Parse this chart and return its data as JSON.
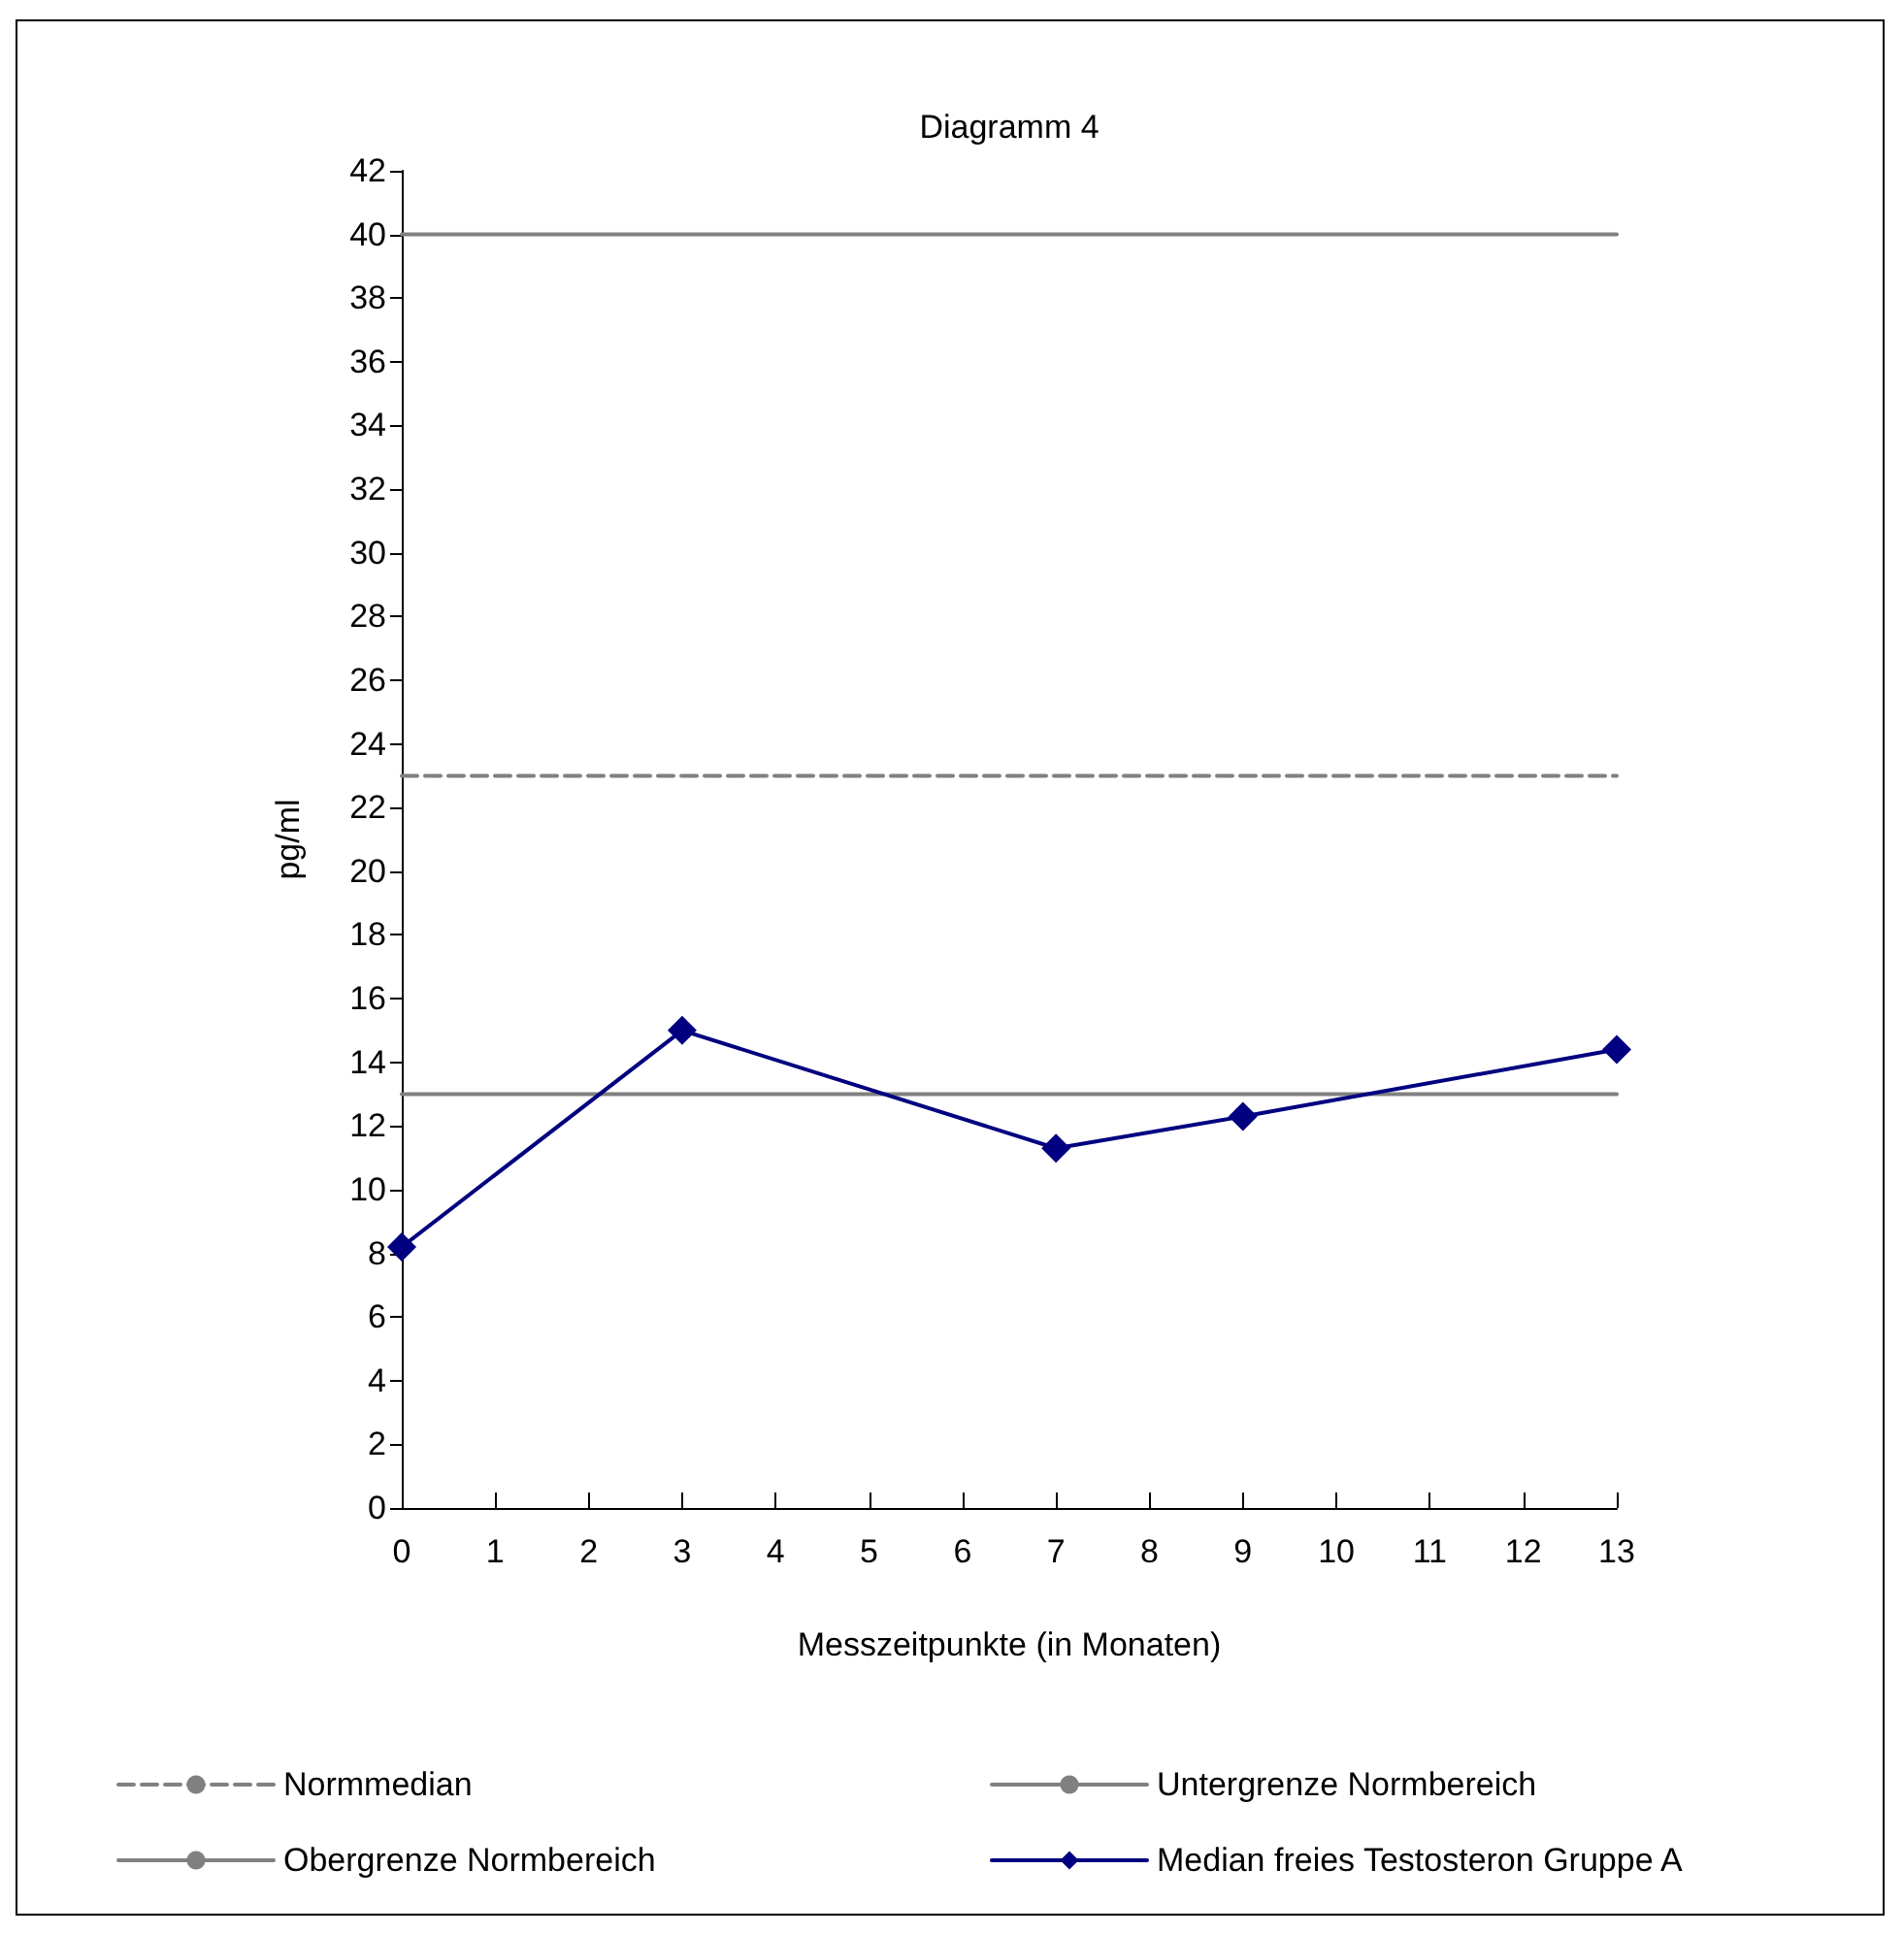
{
  "chart_data": {
    "type": "line",
    "title": "Diagramm 4",
    "xlabel": "Messzeitpunkte (in Monaten)",
    "ylabel": "pg/ml",
    "xlim": [
      0,
      13
    ],
    "xticks": [
      0,
      1,
      2,
      3,
      4,
      5,
      6,
      7,
      8,
      9,
      10,
      11,
      12,
      13
    ],
    "ylim": [
      0,
      42
    ],
    "yticks": [
      0,
      2,
      4,
      6,
      8,
      10,
      12,
      14,
      16,
      18,
      20,
      22,
      24,
      26,
      28,
      30,
      32,
      34,
      36,
      38,
      40,
      42
    ],
    "grid": false,
    "legend": "bottom",
    "series": [
      {
        "name": "Normmedian",
        "color": "#808080",
        "x": [
          0,
          13
        ],
        "values": [
          23,
          23
        ],
        "line_style": "dashed",
        "marker": "none"
      },
      {
        "name": "Untergrenze Normbereich",
        "color": "#808080",
        "x": [
          0,
          13
        ],
        "values": [
          13,
          13
        ],
        "line_style": "solid",
        "marker": "none"
      },
      {
        "name": "Obergrenze Normbereich",
        "color": "#808080",
        "x": [
          0,
          13
        ],
        "values": [
          40,
          40
        ],
        "line_style": "solid",
        "marker": "none"
      },
      {
        "name": "Median freies Testosteron Gruppe A",
        "color": "#000080",
        "x": [
          0,
          3,
          7,
          9,
          13
        ],
        "values": [
          8.2,
          15.0,
          11.3,
          12.3,
          14.4
        ],
        "line_style": "solid",
        "marker": "diamond"
      }
    ]
  }
}
